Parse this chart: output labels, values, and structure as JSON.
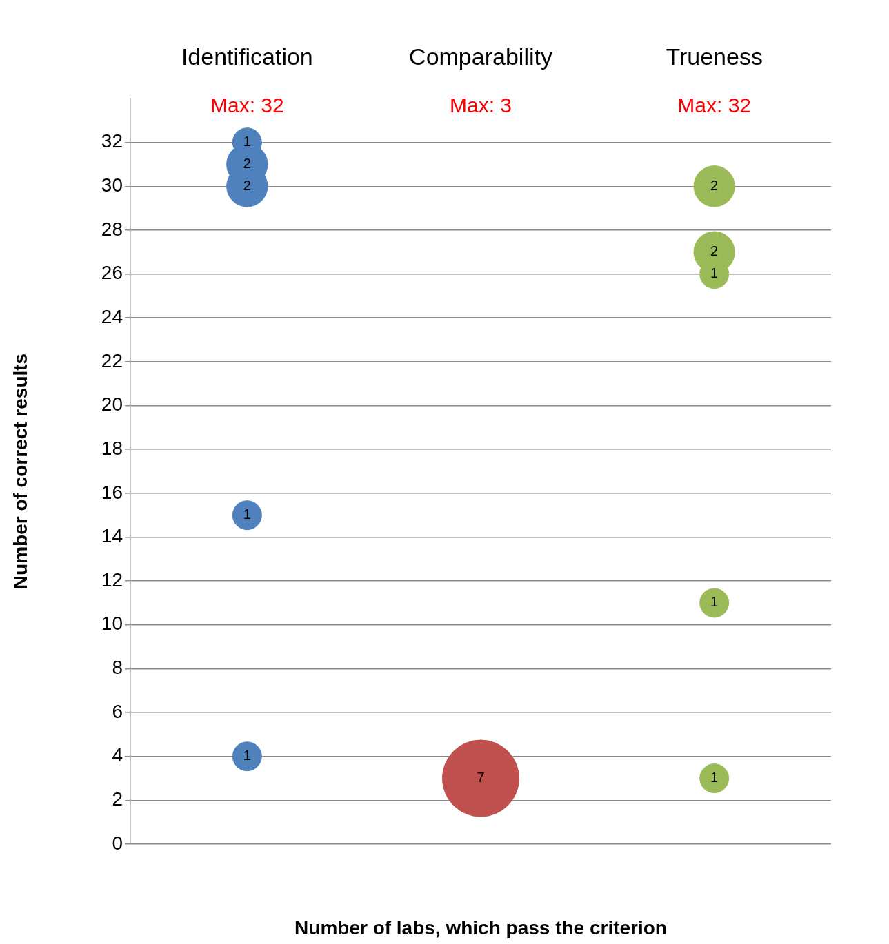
{
  "chart_data": {
    "type": "bubble",
    "xlabel": "Number of labs, which pass the criterion",
    "ylabel": "Number of correct results",
    "categories": [
      "Identification",
      "Comparability",
      "Trueness"
    ],
    "series": [
      {
        "color": "#4f81bd",
        "x": [
          "Identification",
          "Identification",
          "Identification",
          "Identification",
          "Identification"
        ],
        "values": [
          32,
          31,
          30,
          15,
          4
        ],
        "sizes": [
          1,
          2,
          2,
          1,
          1
        ],
        "value_labels": [
          "1",
          "2",
          "2",
          "1",
          "1"
        ]
      },
      {
        "color": "#c0504d",
        "x": [
          "Comparability"
        ],
        "values": [
          3
        ],
        "sizes": [
          7
        ],
        "value_labels": [
          "7"
        ]
      },
      {
        "color": "#9bbb59",
        "x": [
          "Trueness",
          "Trueness",
          "Trueness",
          "Trueness",
          "Trueness"
        ],
        "values": [
          30,
          27,
          26,
          11,
          3
        ],
        "sizes": [
          2,
          2,
          1,
          1,
          1
        ],
        "value_labels": [
          "2",
          "2",
          "1",
          "1",
          "1"
        ]
      }
    ],
    "annotations": [
      "Max: 32",
      "Max: 3",
      "Max: 32"
    ],
    "ylim": [
      0,
      34
    ],
    "yticks": [
      0,
      2,
      4,
      6,
      8,
      10,
      12,
      14,
      16,
      18,
      20,
      22,
      24,
      26,
      28,
      30,
      32
    ],
    "grid": "y",
    "legend": false
  }
}
